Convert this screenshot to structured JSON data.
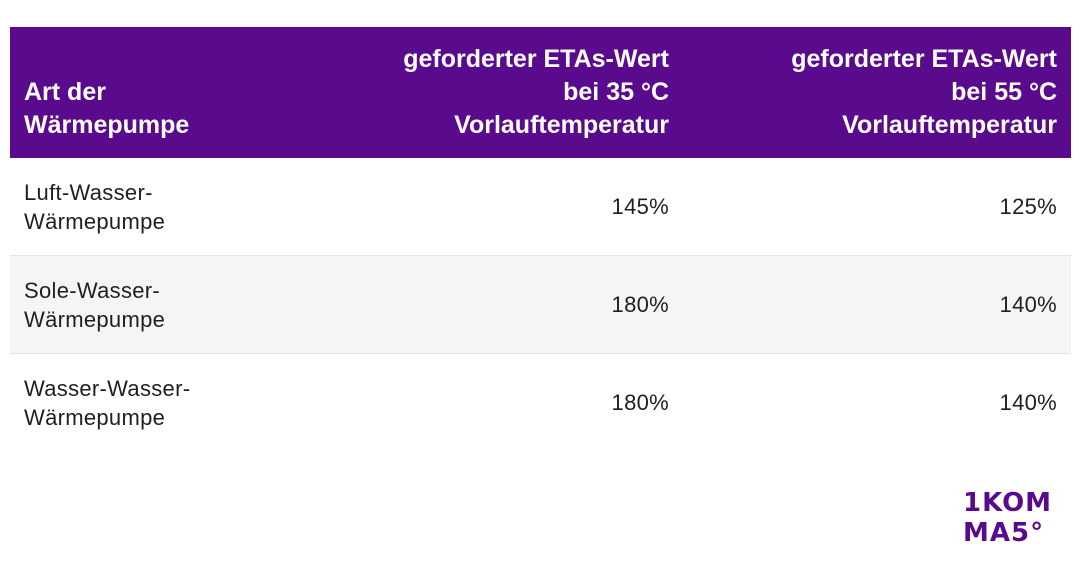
{
  "table": {
    "headers": [
      "Art der\nWärmepumpe",
      "geforderter ETAs-Wert\nbei 35 °C\nVorlauftemperatur",
      "geforderter ETAs-Wert\nbei 55 °C\nVorlauftemperatur"
    ],
    "rows": [
      [
        "Luft-Wasser-\nWärmepumpe",
        "145%",
        "125%"
      ],
      [
        "Sole-Wasser-\nWärmepumpe",
        "180%",
        "140%"
      ],
      [
        "Wasser-Wasser-\nWärmepumpe",
        "180%",
        "140%"
      ]
    ],
    "colors": {
      "header_bg": "#5a0a8c",
      "header_text": "#ffffff",
      "alt_row_bg": "#f5f5f5"
    }
  },
  "logo": {
    "line1": "1KOM",
    "line2": "MA5°",
    "color": "#5a0a8c"
  }
}
